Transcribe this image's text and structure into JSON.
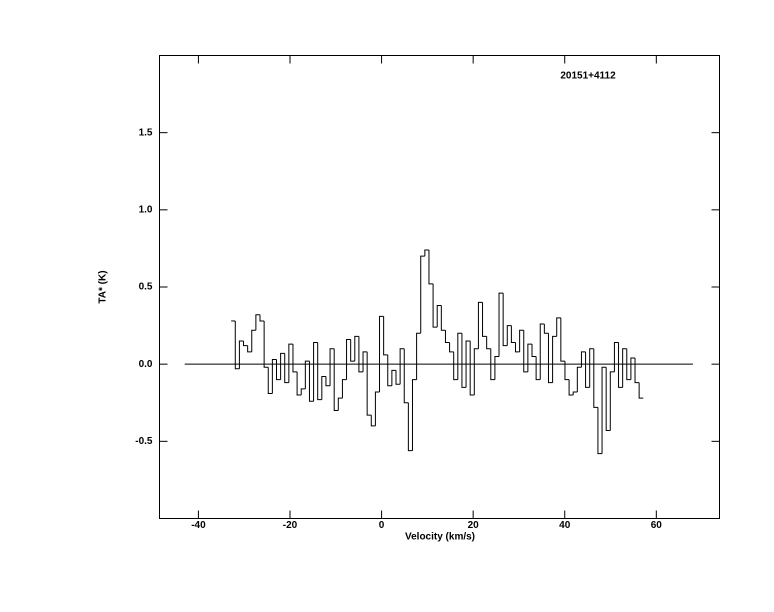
{
  "chart_data": {
    "type": "line",
    "annotation": "20151+4112",
    "xlabel": "Velocity (km/s)",
    "ylabel": "TA* (K)",
    "xlim": [
      -48.5,
      73.8
    ],
    "ylim": [
      -1.0,
      2.0
    ],
    "xticks": [
      -40,
      -20,
      0,
      20,
      40,
      60
    ],
    "yticks": [
      -0.5,
      {
        "value": 0,
        "label": "0.0"
      },
      0.5,
      {
        "value": 1,
        "label": "1.0"
      },
      1.5
    ],
    "legend": false,
    "grid": false,
    "series": [
      {
        "color": "#000000",
        "drawstyle": "steps",
        "x": [
          -32.4,
          -31.5,
          -30.6,
          -29.7,
          -28.8,
          -27.9,
          -27.0,
          -26.1,
          -25.2,
          -24.3,
          -23.4,
          -22.5,
          -21.6,
          -20.7,
          -19.8,
          -18.9,
          -18.0,
          -17.1,
          -16.2,
          -15.3,
          -14.4,
          -13.5,
          -12.6,
          -11.7,
          -10.8,
          -9.9,
          -9.0,
          -8.1,
          -7.2,
          -6.3,
          -5.4,
          -4.5,
          -3.6,
          -2.7,
          -1.8,
          -0.9,
          0.0,
          0.9,
          1.8,
          2.7,
          3.6,
          4.5,
          5.4,
          6.3,
          7.2,
          8.1,
          9.0,
          9.9,
          10.8,
          11.7,
          12.6,
          13.5,
          14.4,
          15.3,
          16.2,
          17.1,
          18.0,
          18.9,
          19.8,
          20.7,
          21.6,
          22.5,
          23.4,
          24.3,
          25.2,
          26.1,
          27.0,
          27.9,
          28.8,
          29.7,
          30.6,
          31.5,
          32.4,
          33.3,
          34.2,
          35.1,
          36.0,
          36.9,
          37.8,
          38.7,
          39.6,
          40.5,
          41.4,
          42.3,
          43.2,
          44.1,
          45.0,
          45.9,
          46.8,
          47.7,
          48.6,
          49.5,
          50.4,
          51.3,
          52.2,
          53.1,
          54.0,
          54.9,
          55.8,
          56.7
        ],
        "values": [
          0.28,
          -0.03,
          0.15,
          0.12,
          0.08,
          0.22,
          0.32,
          0.28,
          -0.02,
          -0.19,
          0.03,
          -0.1,
          0.07,
          -0.12,
          0.13,
          -0.05,
          -0.2,
          -0.16,
          0.02,
          -0.24,
          0.14,
          -0.23,
          -0.08,
          -0.14,
          0.1,
          -0.3,
          -0.22,
          -0.1,
          0.16,
          0.02,
          0.18,
          -0.05,
          0.08,
          -0.33,
          -0.4,
          -0.18,
          0.31,
          0.06,
          -0.14,
          -0.04,
          -0.13,
          0.1,
          -0.25,
          -0.56,
          -0.1,
          0.2,
          0.7,
          0.74,
          0.52,
          0.24,
          0.38,
          0.22,
          0.14,
          0.08,
          -0.1,
          0.2,
          -0.15,
          0.15,
          -0.2,
          0.1,
          0.4,
          0.18,
          0.1,
          -0.1,
          0.05,
          0.46,
          0.12,
          0.25,
          0.14,
          0.08,
          0.22,
          -0.05,
          0.13,
          0.05,
          -0.1,
          0.26,
          0.2,
          -0.12,
          0.18,
          0.3,
          0.02,
          -0.1,
          -0.2,
          -0.18,
          -0.02,
          0.08,
          -0.15,
          0.1,
          -0.28,
          -0.58,
          -0.02,
          -0.43,
          -0.05,
          0.14,
          -0.15,
          0.1,
          -0.1,
          0.04,
          -0.12,
          -0.22
        ]
      },
      {
        "color": "#000000",
        "drawstyle": "line",
        "x": [
          -43,
          68
        ],
        "values": [
          0,
          0
        ]
      }
    ]
  }
}
